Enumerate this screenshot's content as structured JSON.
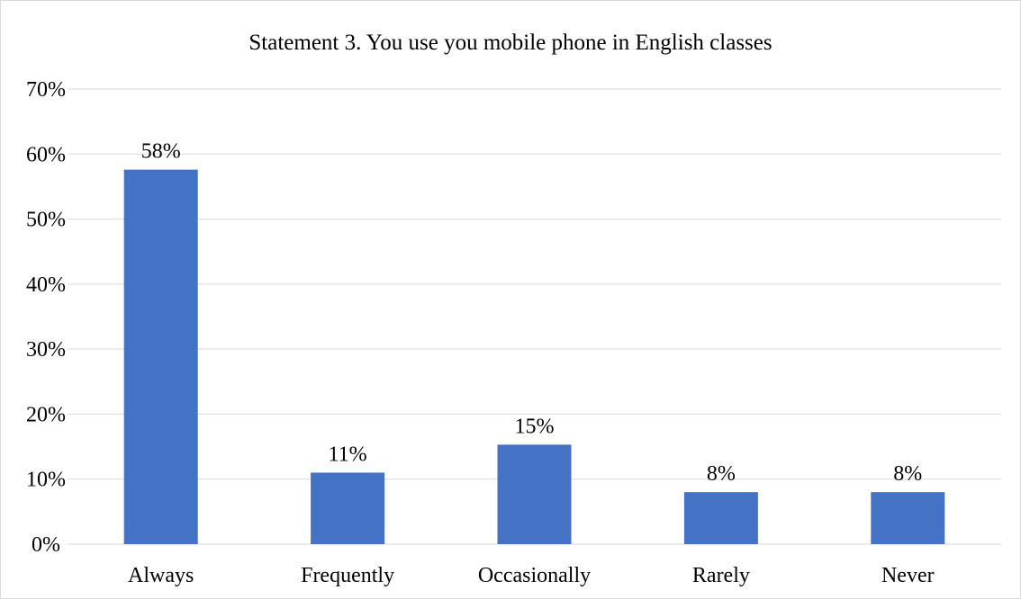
{
  "chart_data": {
    "type": "bar",
    "title": "Statement 3. You use you mobile phone in English classes",
    "xlabel": "",
    "ylabel": "",
    "categories": [
      "Always",
      "Frequently",
      "Occasionally",
      "Rarely",
      "Never"
    ],
    "values": [
      0.576,
      0.11,
      0.153,
      0.08,
      0.08
    ],
    "data_labels": [
      "58%",
      "11%",
      "15%",
      "8%",
      "8%"
    ],
    "ylim": [
      0,
      0.7
    ],
    "yticks": [
      0,
      0.1,
      0.2,
      0.3,
      0.4,
      0.5,
      0.6,
      0.7
    ],
    "ytick_labels": [
      "0%",
      "10%",
      "20%",
      "30%",
      "40%",
      "50%",
      "60%",
      "70%"
    ],
    "grid": true,
    "legend": "none",
    "colors": {
      "bar": "#4472C4",
      "grid": "#d9d9d9",
      "axis": "#d9d9d9"
    }
  }
}
